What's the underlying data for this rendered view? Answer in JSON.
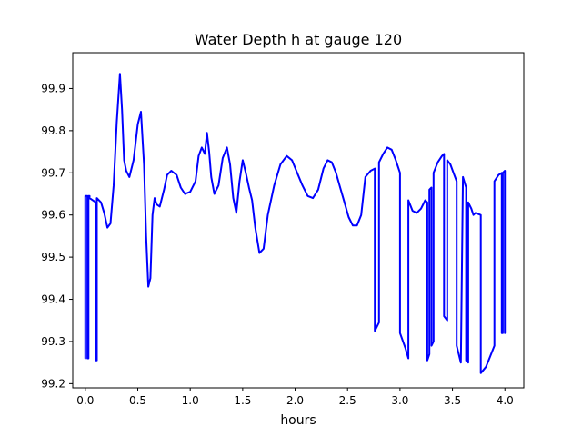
{
  "chart_data": {
    "type": "line",
    "title": "Water Depth h at gauge 120",
    "xlabel": "hours",
    "ylabel": "",
    "xlim": [
      -0.12,
      4.18
    ],
    "ylim": [
      99.19,
      99.985
    ],
    "xticks": [
      0.0,
      0.5,
      1.0,
      1.5,
      2.0,
      2.5,
      3.0,
      3.5,
      4.0
    ],
    "xtick_labels": [
      "0.0",
      "0.5",
      "1.0",
      "1.5",
      "2.0",
      "2.5",
      "3.0",
      "3.5",
      "4.0"
    ],
    "yticks": [
      99.2,
      99.3,
      99.4,
      99.5,
      99.6,
      99.7,
      99.8,
      99.9
    ],
    "ytick_labels": [
      "99.2",
      "99.3",
      "99.4",
      "99.5",
      "99.6",
      "99.7",
      "99.8",
      "99.9"
    ],
    "grid": false,
    "series": [
      {
        "color": "#0000ff",
        "x": [
          0.0,
          0.0,
          0.02,
          0.02,
          0.03,
          0.03,
          0.04,
          0.04,
          0.1,
          0.1,
          0.11,
          0.11,
          0.15,
          0.18,
          0.21,
          0.24,
          0.27,
          0.3,
          0.33,
          0.35,
          0.37,
          0.39,
          0.42,
          0.46,
          0.5,
          0.53,
          0.56,
          0.58,
          0.6,
          0.62,
          0.64,
          0.66,
          0.68,
          0.71,
          0.75,
          0.78,
          0.82,
          0.87,
          0.91,
          0.95,
          1.0,
          1.05,
          1.08,
          1.11,
          1.14,
          1.16,
          1.18,
          1.2,
          1.23,
          1.27,
          1.31,
          1.35,
          1.38,
          1.41,
          1.44,
          1.47,
          1.5,
          1.53,
          1.56,
          1.59,
          1.62,
          1.66,
          1.7,
          1.74,
          1.8,
          1.86,
          1.92,
          1.97,
          2.02,
          2.07,
          2.12,
          2.17,
          2.22,
          2.27,
          2.31,
          2.35,
          2.39,
          2.43,
          2.47,
          2.51,
          2.55,
          2.59,
          2.63,
          2.67,
          2.72,
          2.76,
          2.76,
          2.8,
          2.8,
          2.84,
          2.88,
          2.92,
          2.96,
          3.0,
          3.0,
          3.05,
          3.08,
          3.08,
          3.12,
          3.16,
          3.2,
          3.24,
          3.26,
          3.26,
          3.28,
          3.28,
          3.3,
          3.3,
          3.32,
          3.32,
          3.36,
          3.4,
          3.42,
          3.42,
          3.45,
          3.45,
          3.48,
          3.51,
          3.54,
          3.54,
          3.58,
          3.6,
          3.63,
          3.63,
          3.65,
          3.65,
          3.68,
          3.7,
          3.72,
          3.77,
          3.77,
          3.82,
          3.86,
          3.9,
          3.9,
          3.94,
          3.97,
          3.97,
          3.98,
          3.98,
          4.0,
          4.0
        ],
        "y": [
          99.26,
          99.645,
          99.645,
          99.26,
          99.26,
          99.645,
          99.645,
          99.64,
          99.63,
          99.255,
          99.255,
          99.64,
          99.63,
          99.605,
          99.57,
          99.58,
          99.67,
          99.82,
          99.935,
          99.85,
          99.73,
          99.705,
          99.69,
          99.73,
          99.815,
          99.845,
          99.72,
          99.55,
          99.43,
          99.45,
          99.6,
          99.64,
          99.625,
          99.62,
          99.66,
          99.695,
          99.705,
          99.695,
          99.665,
          99.65,
          99.655,
          99.68,
          99.74,
          99.76,
          99.745,
          99.795,
          99.75,
          99.69,
          99.65,
          99.67,
          99.735,
          99.76,
          99.72,
          99.64,
          99.605,
          99.68,
          99.73,
          99.7,
          99.665,
          99.635,
          99.57,
          99.51,
          99.52,
          99.6,
          99.67,
          99.72,
          99.74,
          99.73,
          99.7,
          99.67,
          99.645,
          99.64,
          99.66,
          99.71,
          99.73,
          99.725,
          99.7,
          99.665,
          99.63,
          99.595,
          99.575,
          99.575,
          99.6,
          99.69,
          99.705,
          99.71,
          99.325,
          99.345,
          99.725,
          99.745,
          99.76,
          99.755,
          99.73,
          99.7,
          99.32,
          99.285,
          99.26,
          99.635,
          99.61,
          99.605,
          99.615,
          99.635,
          99.63,
          99.255,
          99.27,
          99.66,
          99.665,
          99.29,
          99.3,
          99.7,
          99.725,
          99.74,
          99.745,
          99.36,
          99.35,
          99.73,
          99.72,
          99.7,
          99.68,
          99.29,
          99.25,
          99.69,
          99.665,
          99.255,
          99.25,
          99.63,
          99.615,
          99.6,
          99.605,
          99.6,
          99.225,
          99.24,
          99.265,
          99.29,
          99.68,
          99.695,
          99.7,
          99.32,
          99.32,
          99.7,
          99.705,
          99.32
        ]
      }
    ]
  }
}
